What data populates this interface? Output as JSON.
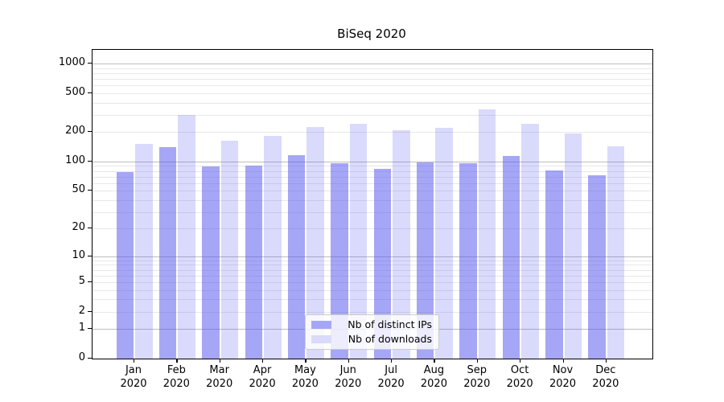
{
  "chart_data": {
    "type": "bar",
    "title": "BiSeq 2020",
    "x_categories": [
      "Jan 2020",
      "Feb 2020",
      "Mar 2020",
      "Apr 2020",
      "May 2020",
      "Jun 2020",
      "Jul 2020",
      "Aug 2020",
      "Sep 2020",
      "Oct 2020",
      "Nov 2020",
      "Dec 2020"
    ],
    "series": [
      {
        "name": "Nb of distinct IPs",
        "values": [
          78,
          140,
          89,
          91,
          115,
          96,
          84,
          97,
          96,
          113,
          81,
          72
        ]
      },
      {
        "name": "Nb of downloads",
        "values": [
          152,
          300,
          162,
          182,
          225,
          245,
          210,
          222,
          340,
          242,
          195,
          144
        ]
      }
    ],
    "xlabel": "",
    "ylabel": "",
    "y_scale": "log1p",
    "ylim": [
      0,
      1470
    ],
    "y_tick_values": [
      0,
      1,
      2,
      5,
      10,
      20,
      50,
      100,
      200,
      500,
      1000
    ],
    "y_major_gridlines": [
      1,
      10,
      100,
      1000
    ],
    "y_minor_gridlines": [
      2,
      3,
      4,
      5,
      6,
      7,
      8,
      9,
      20,
      30,
      40,
      50,
      60,
      70,
      80,
      90,
      200,
      300,
      400,
      500,
      600,
      700,
      800,
      900
    ],
    "grid": "on",
    "legend_position": "lower-center-inside"
  },
  "colors": {
    "bar_distinct_ips": "rgba(85,85,240,0.52)",
    "bar_downloads": "rgba(85,85,240,0.22)",
    "legend_swatch_ips": "#a6a6f7",
    "legend_swatch_downloads": "#dadaf9",
    "grid_major": "#bdbdbd",
    "grid_minor": "#e8e8e8",
    "axis": "#000000"
  }
}
